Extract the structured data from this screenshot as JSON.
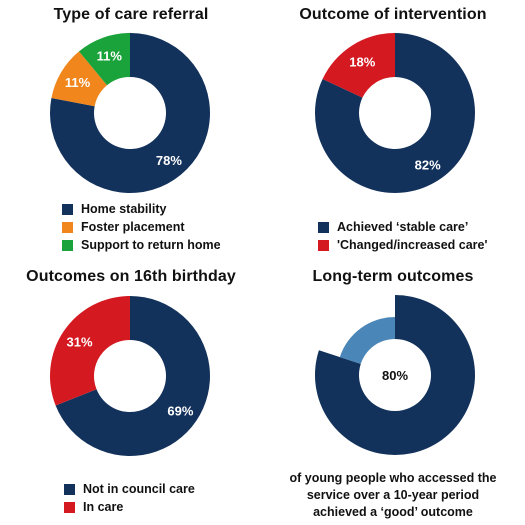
{
  "colors": {
    "navy": "#13325b",
    "orange": "#f0861c",
    "green": "#1ba33b",
    "red": "#d41921",
    "lightblue": "#4a86b8"
  },
  "chart_data": [
    {
      "type": "pie",
      "title": "Type of care referral",
      "series": [
        {
          "name": "Home stability",
          "value": 78,
          "label": "78%",
          "color": "#13325b"
        },
        {
          "name": "Foster placement",
          "value": 11,
          "label": "11%",
          "color": "#f0861c"
        },
        {
          "name": "Support to return home",
          "value": 11,
          "label": "11%",
          "color": "#1ba33b"
        }
      ],
      "legend": "bottom"
    },
    {
      "type": "pie",
      "title": "Outcome of intervention",
      "series": [
        {
          "name": "Achieved ‘stable care’",
          "value": 82,
          "label": "82%",
          "color": "#13325b"
        },
        {
          "name": "'Changed/increased care'",
          "value": 18,
          "label": "18%",
          "color": "#d41921"
        }
      ],
      "legend": "bottom"
    },
    {
      "type": "pie",
      "title": "Outcomes on 16th birthday",
      "series": [
        {
          "name": "Not in council care",
          "value": 69,
          "label": "69%",
          "color": "#13325b"
        },
        {
          "name": "In care",
          "value": 31,
          "label": "31%",
          "color": "#d41921"
        }
      ],
      "legend": "bottom"
    },
    {
      "type": "pie",
      "title": "Long-term outcomes",
      "series": [
        {
          "value": 80,
          "label": "80%",
          "color": "#13325b"
        },
        {
          "value": 20,
          "color": "#4a86b8"
        }
      ],
      "note": "of young people who accessed the service over a 10-year period achieved a ‘good’ outcome"
    }
  ]
}
